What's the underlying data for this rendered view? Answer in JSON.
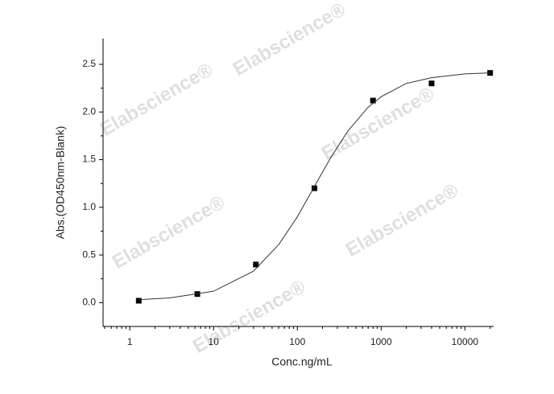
{
  "chart_data": {
    "type": "scatter",
    "xlabel": "Conc.ng/mL",
    "ylabel": "Abs.(OD450nm-Blank)",
    "watermark": "Elabscience®",
    "xscale": "log",
    "xlim": [
      0.48,
      22000
    ],
    "ylim": [
      -0.25,
      2.77
    ],
    "xticks": [
      1,
      10,
      100,
      1000,
      10000
    ],
    "yticks": [
      {
        "value": 0,
        "label": "0.0"
      },
      0.5,
      {
        "value": 1,
        "label": "1.0"
      },
      1.5,
      {
        "value": 2,
        "label": "2.0"
      },
      2.5
    ],
    "series": [
      {
        "type": "scatter",
        "color": "#000000",
        "x": [
          1.28,
          6.4,
          32,
          160,
          800,
          4000,
          20000
        ],
        "values": [
          0.02,
          0.09,
          0.4,
          1.2,
          2.12,
          2.3,
          2.41
        ]
      },
      {
        "type": "line",
        "color": "#333333",
        "x": [
          1.28,
          3,
          10,
          30,
          60,
          100,
          160,
          250,
          400,
          700,
          1000,
          2000,
          4000,
          10000,
          20000
        ],
        "values": [
          0.03,
          0.05,
          0.12,
          0.33,
          0.61,
          0.9,
          1.22,
          1.52,
          1.8,
          2.05,
          2.16,
          2.3,
          2.36,
          2.4,
          2.41
        ]
      }
    ]
  }
}
